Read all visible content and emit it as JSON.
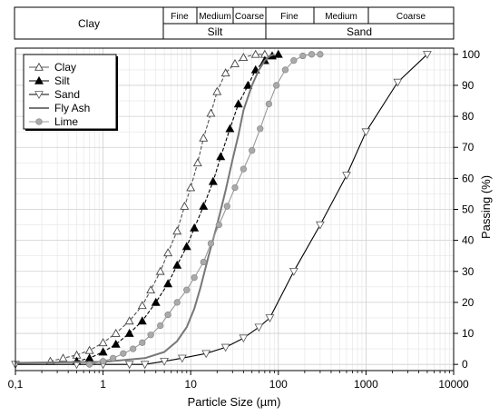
{
  "chart_data": {
    "type": "line",
    "xlabel": "Particle Size (µm)",
    "ylabel": "Passing (%)",
    "xscale": "log",
    "xlim": [
      0.1,
      10000
    ],
    "ylim": [
      -2,
      102
    ],
    "x_ticks": [
      {
        "value": 0.1,
        "label": "0,1"
      },
      {
        "value": 1,
        "label": "1"
      },
      {
        "value": 10,
        "label": "10"
      },
      {
        "value": 100,
        "label": "100"
      },
      {
        "value": 1000,
        "label": "1000"
      },
      {
        "value": 10000,
        "label": "10000"
      }
    ],
    "y_ticks": [
      0,
      10,
      20,
      30,
      40,
      50,
      60,
      70,
      80,
      90,
      100
    ],
    "grid": true,
    "legend_position": "top-left",
    "size_classes": {
      "clay_label": "Clay",
      "silt_label": "Silt",
      "sand_label": "Sand",
      "sub_labels": [
        "Fine",
        "Medium",
        "Coarse",
        "Fine",
        "Medium",
        "Coarse"
      ],
      "boundaries": [
        2,
        6.3,
        20,
        63,
        200,
        630,
        2000
      ]
    },
    "series": [
      {
        "name": "Clay",
        "marker": "triangle-up-open",
        "color": "#555555",
        "x": [
          0.25,
          0.35,
          0.5,
          0.7,
          1.0,
          1.4,
          2.0,
          2.8,
          3.5,
          4.5,
          5.5,
          7.0,
          8.5,
          10,
          12,
          14,
          17,
          20,
          25,
          32,
          40,
          55,
          70
        ],
        "y": [
          1,
          2,
          3,
          4.5,
          7,
          10,
          14,
          19,
          24,
          30,
          36,
          43,
          51,
          57,
          65,
          73,
          81,
          88,
          94,
          97,
          99,
          100,
          100
        ]
      },
      {
        "name": "Silt",
        "marker": "triangle-up-filled",
        "color": "#000000",
        "x": [
          0.5,
          0.7,
          1.0,
          1.4,
          2.0,
          2.8,
          4.0,
          5.5,
          7.0,
          9.0,
          11,
          14,
          18,
          22,
          28,
          35,
          45,
          55,
          70,
          85,
          100
        ],
        "y": [
          1,
          2,
          4,
          6.5,
          10,
          14,
          20,
          26,
          32,
          38,
          44,
          51,
          59,
          67,
          76,
          84,
          90,
          95,
          98,
          99.5,
          100
        ]
      },
      {
        "name": "Sand",
        "marker": "triangle-down-open",
        "color": "#000000",
        "x": [
          0.1,
          0.5,
          1.0,
          2.0,
          3.0,
          5.0,
          8.0,
          15,
          25,
          40,
          60,
          80,
          150,
          300,
          600,
          1000,
          2300,
          5000
        ],
        "y": [
          0,
          0,
          0,
          0,
          0,
          1,
          2,
          3.5,
          5.5,
          8.5,
          12,
          15,
          30,
          45,
          61,
          75,
          91,
          100
        ]
      },
      {
        "name": "Fly Ash",
        "marker": "none",
        "color": "#777777",
        "x": [
          0.1,
          1,
          3,
          5,
          7,
          9,
          11,
          13,
          16,
          20,
          25,
          30,
          35,
          40,
          50,
          60,
          70,
          80,
          90
        ],
        "y": [
          0.5,
          0.8,
          2,
          4,
          7.5,
          12,
          18,
          25,
          35,
          45,
          56,
          66,
          74,
          82,
          90,
          95,
          98,
          99.5,
          100
        ]
      },
      {
        "name": "Lime",
        "marker": "circle-filled",
        "color": "#999999",
        "x": [
          0.7,
          1.0,
          1.3,
          1.7,
          2.2,
          2.8,
          3.5,
          4.5,
          5.5,
          7.0,
          9.0,
          11,
          14,
          17,
          21,
          26,
          32,
          40,
          50,
          62,
          78,
          95,
          120,
          150,
          190,
          240,
          300
        ],
        "y": [
          0,
          1,
          2,
          3.5,
          5,
          7,
          9.5,
          12.5,
          16,
          20,
          24,
          28,
          33,
          39,
          45,
          51,
          57,
          63,
          69,
          76,
          84,
          90,
          95,
          98,
          99.5,
          100,
          100
        ]
      }
    ]
  }
}
